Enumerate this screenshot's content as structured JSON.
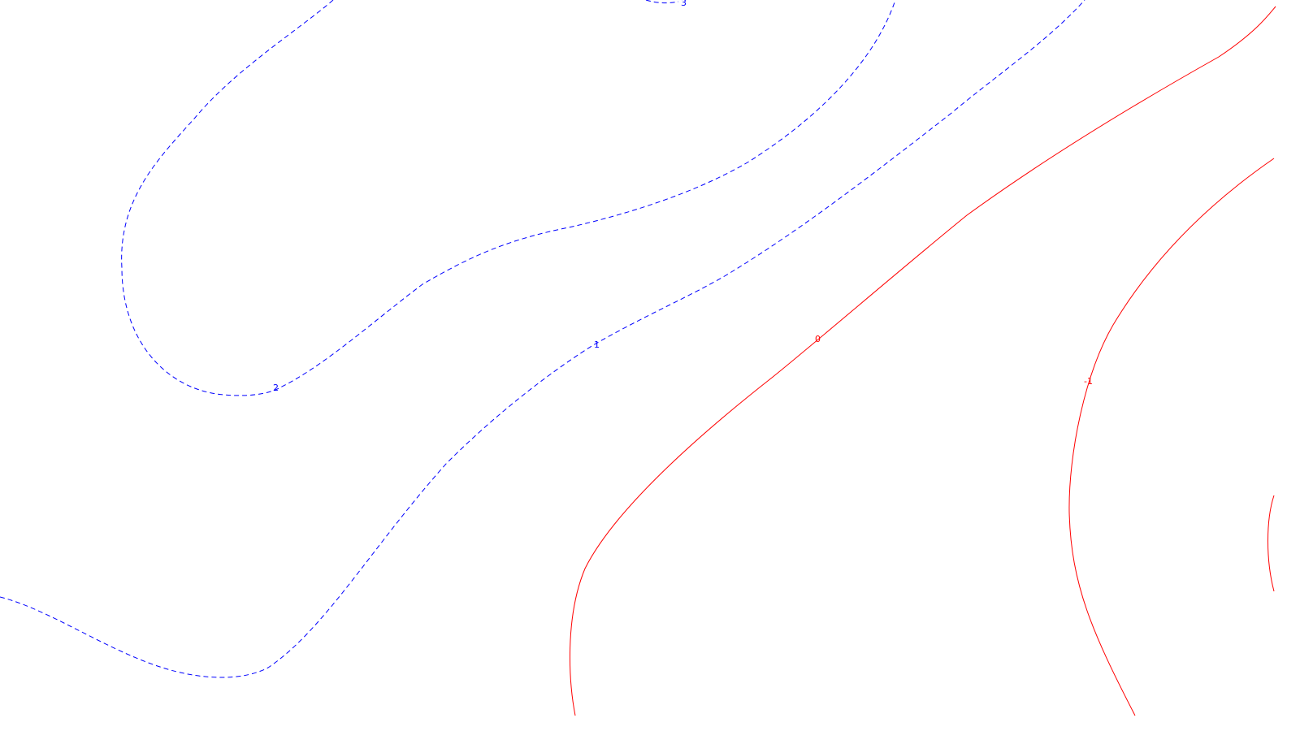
{
  "contour_plot": {
    "levels": [
      {
        "name": "contour-level-3",
        "label": "3",
        "style": "dashed",
        "color": "#0000ff"
      },
      {
        "name": "contour-level-2",
        "label": "2",
        "style": "dashed",
        "color": "#0000ff"
      },
      {
        "name": "contour-level-1",
        "label": "1",
        "style": "dashed",
        "color": "#0000ff"
      },
      {
        "name": "contour-level-0",
        "label": "0",
        "style": "solid",
        "color": "#ff0000"
      },
      {
        "name": "contour-level-neg1",
        "label": "-1",
        "style": "solid",
        "color": "#ff0000"
      },
      {
        "name": "contour-level-neg2",
        "label": "",
        "style": "solid",
        "color": "#ff0000"
      }
    ]
  }
}
